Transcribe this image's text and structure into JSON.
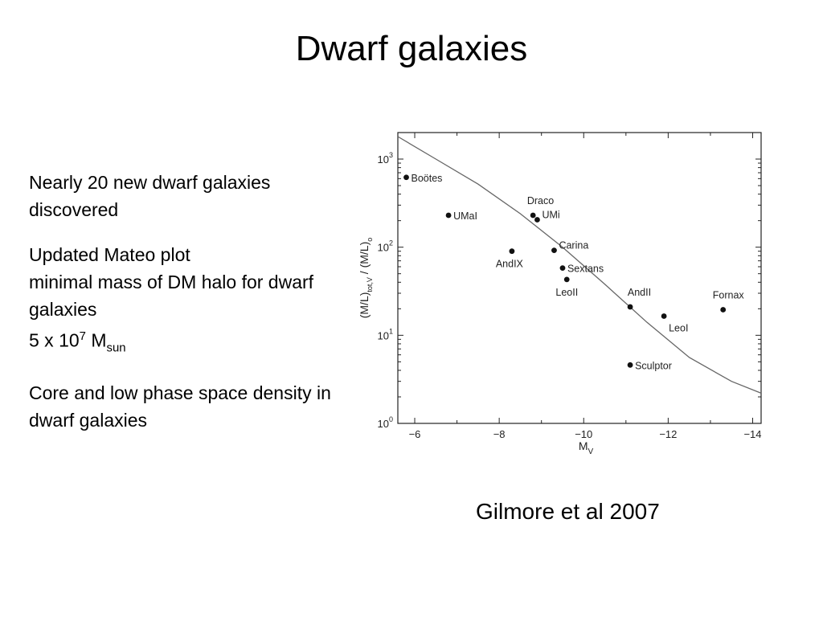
{
  "slide": {
    "title": "Dwarf galaxies",
    "bullets": [
      {
        "lines": [
          "Nearly 20 new dwarf galaxies discovered"
        ]
      },
      {
        "lines": [
          "Updated Mateo plot",
          "minimal mass of DM halo for dwarf galaxies"
        ],
        "mass_prefix": "5 x 10",
        "mass_exp": "7",
        "mass_symbol": "M",
        "mass_sub": "sun"
      },
      {
        "lines": [
          "Core and low phase space density in dwarf galaxies"
        ]
      }
    ],
    "credit": "Gilmore et al 2007"
  },
  "chart_data": {
    "type": "scatter",
    "xlabel": "M",
    "xlabel_sub": "V",
    "ylabel_parts": {
      "num": "(M/L)",
      "num_sub": "tot,V",
      "sep": "/",
      "den": "(M/L)",
      "den_sub": "o"
    },
    "xlim": [
      -5.6,
      -14.2
    ],
    "ylim": [
      1,
      2000
    ],
    "y_scale": "log",
    "x_ticks": [
      {
        "value": -6,
        "label": "−6"
      },
      {
        "value": -8,
        "label": "−8"
      },
      {
        "value": -10,
        "label": "−10"
      },
      {
        "value": -12,
        "label": "−12"
      },
      {
        "value": -14,
        "label": "−14"
      }
    ],
    "y_ticks": [
      {
        "value": 1,
        "base": "10",
        "exp": "0"
      },
      {
        "value": 10,
        "base": "10",
        "exp": "1"
      },
      {
        "value": 100,
        "base": "10",
        "exp": "2"
      },
      {
        "value": 1000,
        "base": "10",
        "exp": "3"
      }
    ],
    "points": [
      {
        "name": "Boötes",
        "x": -5.8,
        "y": 620,
        "label_pos": "right"
      },
      {
        "name": "UMaI",
        "x": -6.8,
        "y": 230,
        "label_pos": "right"
      },
      {
        "name": "Draco",
        "x": -8.8,
        "y": 230,
        "label_pos": "above-left"
      },
      {
        "name": "UMi",
        "x": -8.9,
        "y": 205,
        "label_pos": "right-up"
      },
      {
        "name": "AndIX",
        "x": -8.3,
        "y": 90,
        "label_pos": "below-left"
      },
      {
        "name": "Carina",
        "x": -9.3,
        "y": 92,
        "label_pos": "right-up"
      },
      {
        "name": "Sextans",
        "x": -9.5,
        "y": 58,
        "label_pos": "right"
      },
      {
        "name": "LeoII",
        "x": -9.6,
        "y": 43,
        "label_pos": "below-left"
      },
      {
        "name": "AndII",
        "x": -11.1,
        "y": 21,
        "label_pos": "above-left"
      },
      {
        "name": "LeoI",
        "x": -11.9,
        "y": 16.5,
        "label_pos": "below-right"
      },
      {
        "name": "Fornax",
        "x": -13.3,
        "y": 19.5,
        "label_pos": "above-left"
      },
      {
        "name": "Sculptor",
        "x": -11.1,
        "y": 4.6,
        "label_pos": "right"
      }
    ],
    "curve": {
      "x": [
        -5.6,
        -6.5,
        -7.5,
        -8.5,
        -9.5,
        -10.5,
        -11.5,
        -12.5,
        -13.5,
        -14.2
      ],
      "y": [
        1800,
        1000,
        520,
        240,
        100,
        38,
        14,
        5.6,
        3.0,
        2.2
      ]
    },
    "colors": {
      "axis": "#222222",
      "curve": "#666666",
      "point": "#111111"
    }
  }
}
